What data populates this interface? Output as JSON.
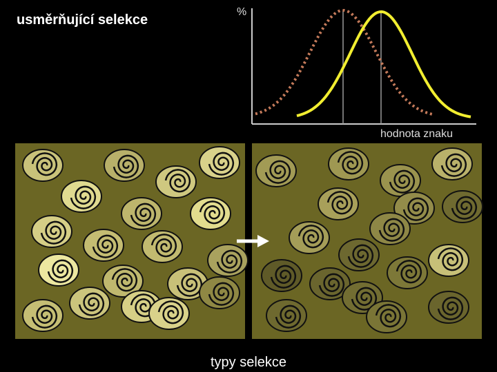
{
  "title": "usměrňující selekce",
  "graph": {
    "y_axis_label": "%",
    "x_axis_label": "hodnota znaku"
  },
  "caption": "typy selekce"
}
